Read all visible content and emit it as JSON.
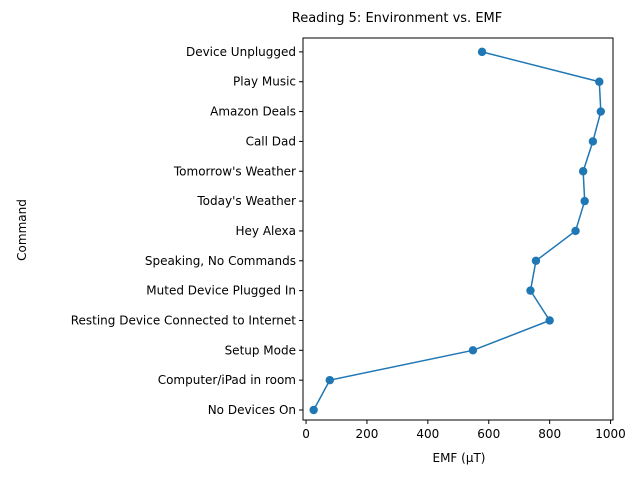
{
  "chart_data": {
    "type": "line",
    "title": "Reading 5: Environment vs. EMF",
    "xlabel": "EMF (µT)",
    "ylabel": "Command",
    "xlim": [
      -10,
      1008
    ],
    "xticks": [
      0,
      200,
      400,
      600,
      800,
      1000
    ],
    "grid": false,
    "marker": "circle",
    "color": "#1f77b4",
    "categories": [
      "No Devices On",
      "Computer/iPad in room",
      "Setup Mode",
      "Resting Device Connected to Internet",
      "Muted Device Plugged In",
      "Speaking, No Commands",
      "Hey Alexa",
      "Today's Weather",
      "Tomorrow's Weather",
      "Call Dad",
      "Amazon Deals",
      "Play Music",
      "Device Unplugged"
    ],
    "values": [
      25,
      78,
      548,
      800,
      737,
      755,
      885,
      915,
      910,
      942,
      968,
      963,
      578
    ]
  }
}
